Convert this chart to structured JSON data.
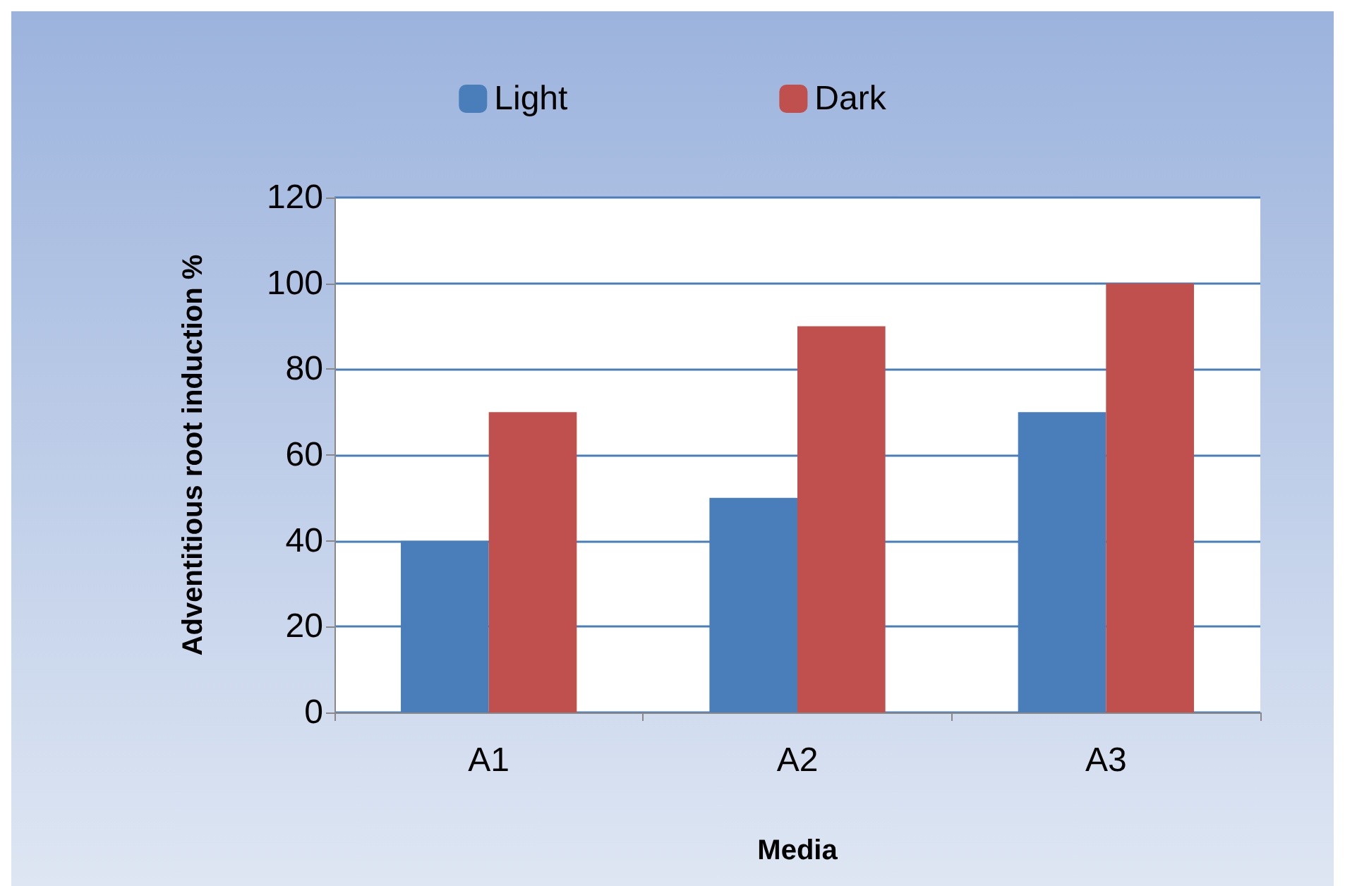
{
  "chart_data": {
    "type": "bar",
    "xlabel": "Media",
    "ylabel": "Adventitious root induction %",
    "categories": [
      "A1",
      "A2",
      "A3"
    ],
    "series": [
      {
        "name": "Light",
        "color": "#4a7ebb",
        "values": [
          40,
          50,
          70
        ]
      },
      {
        "name": "Dark",
        "color": "#c0504d",
        "values": [
          70,
          90,
          100
        ]
      }
    ],
    "ylim": [
      0,
      120
    ],
    "yticks": [
      0,
      20,
      40,
      60,
      80,
      100,
      120
    ],
    "grid": "y",
    "legend": "top"
  }
}
